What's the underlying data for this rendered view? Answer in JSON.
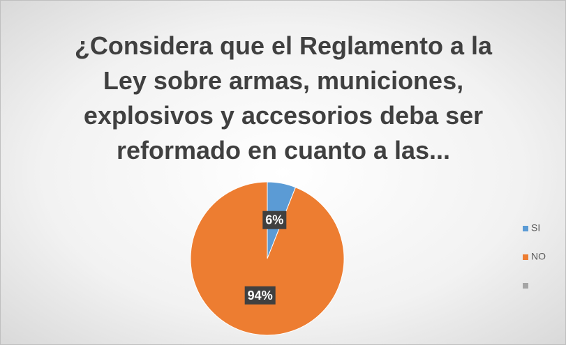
{
  "chart_data": {
    "type": "pie",
    "title": "¿Considera que el Reglamento a la Ley sobre armas, municiones, explosivos y accesorios deba ser reformado en cuanto a las...",
    "categories": [
      "SI",
      "NO",
      null
    ],
    "values": [
      6,
      94,
      0
    ],
    "value_labels": [
      "6%",
      "94%",
      null
    ],
    "colors": [
      "#5b9bd5",
      "#ed7d31",
      "#a5a5a5"
    ],
    "legend": "right"
  }
}
